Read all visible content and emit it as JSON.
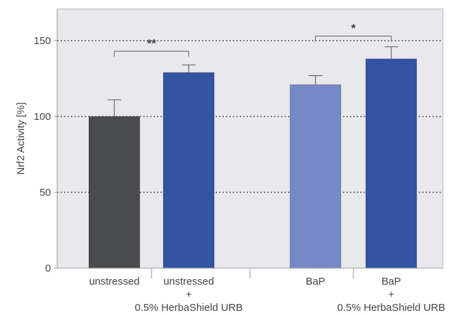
{
  "chart_data": {
    "type": "bar",
    "ylabel": "Nrf2 Activity [%]",
    "ylim": [
      0,
      165
    ],
    "yticks": [
      0,
      50,
      100,
      150
    ],
    "grid": "dotted horizontal at 50, 100, 150",
    "groups": [
      {
        "id": "unstressed",
        "bars": [
          0,
          1
        ]
      },
      {
        "id": "bap",
        "bars": [
          2,
          3
        ]
      }
    ],
    "bars": [
      {
        "label_lines": [
          "unstressed"
        ],
        "value": 100,
        "error": 11,
        "color": "#4a4b4d"
      },
      {
        "label_lines": [
          "unstressed",
          "+",
          "0.5% HerbaShield URB"
        ],
        "value": 129,
        "error": 5,
        "color": "#3353a3"
      },
      {
        "label_lines": [
          "BaP"
        ],
        "value": 121,
        "error": 6,
        "color": "#7589c8"
      },
      {
        "label_lines": [
          "BaP",
          "+",
          "0.5% HerbaShield URB"
        ],
        "value": 138,
        "error": 8,
        "color": "#3353a3"
      }
    ],
    "significance": [
      {
        "from": 0,
        "to": 1,
        "level": 143,
        "label": "**"
      },
      {
        "from": 2,
        "to": 3,
        "level": 153,
        "label": "*"
      }
    ]
  },
  "colors": {
    "plot_background": "#e9e8ed",
    "grid": "#777777",
    "axis": "#999999",
    "error_bar": "#666666",
    "text": "#444444"
  }
}
